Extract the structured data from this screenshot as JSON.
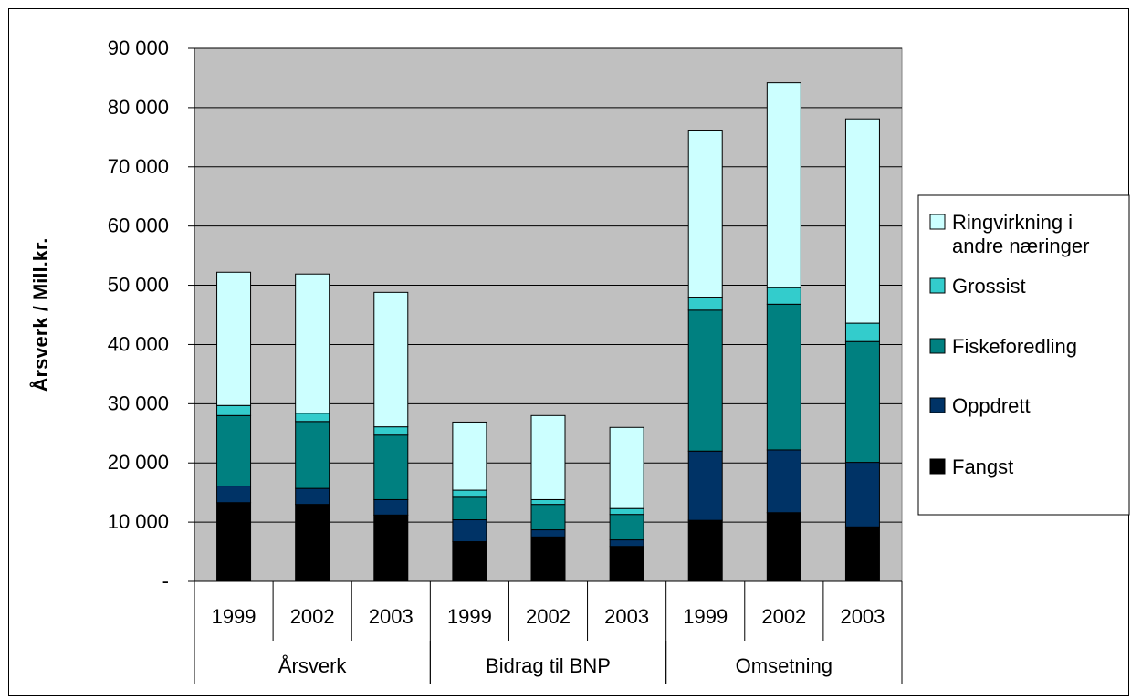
{
  "chart_data": {
    "type": "bar",
    "stacked": true,
    "ylabel": "Årsverk / Mill.kr.",
    "ylim": [
      0,
      90000
    ],
    "y_ticks": [
      {
        "value": 0,
        "label": "-"
      },
      {
        "value": 10000,
        "label": "10 000"
      },
      {
        "value": 20000,
        "label": "20 000"
      },
      {
        "value": 30000,
        "label": "30 000"
      },
      {
        "value": 40000,
        "label": "40 000"
      },
      {
        "value": 50000,
        "label": "50 000"
      },
      {
        "value": 60000,
        "label": "60 000"
      },
      {
        "value": 70000,
        "label": "70 000"
      },
      {
        "value": 80000,
        "label": "80 000"
      },
      {
        "value": 90000,
        "label": "90 000"
      }
    ],
    "grid": true,
    "plot_background": "#c0c0c0",
    "legend_position": "right",
    "groups": [
      {
        "label": "Årsverk",
        "years": [
          "1999",
          "2002",
          "2003"
        ]
      },
      {
        "label": "Bidrag til BNP",
        "years": [
          "1999",
          "2002",
          "2003"
        ]
      },
      {
        "label": "Omsetning",
        "years": [
          "1999",
          "2002",
          "2003"
        ]
      }
    ],
    "series": [
      {
        "name": "Fangst",
        "color": "#000000",
        "values": [
          13300,
          13000,
          11200,
          6700,
          7500,
          5900,
          10300,
          11600,
          9200
        ]
      },
      {
        "name": "Oppdrett",
        "color": "#003366",
        "values": [
          2800,
          2700,
          2600,
          3700,
          1200,
          1100,
          11700,
          10600,
          10900
        ]
      },
      {
        "name": "Fiskeforedling",
        "color": "#008080",
        "values": [
          11900,
          11300,
          10900,
          3800,
          4300,
          4300,
          23800,
          24600,
          20400
        ]
      },
      {
        "name": "Grossist",
        "color": "#33cccc",
        "values": [
          1700,
          1400,
          1400,
          1200,
          800,
          1000,
          2200,
          2800,
          3100
        ]
      },
      {
        "name": "Ringvirkning i andre næringer",
        "color": "#ccffff",
        "values": [
          22500,
          23500,
          22700,
          11500,
          14200,
          13700,
          28200,
          34600,
          34500
        ]
      }
    ]
  },
  "legend": {
    "items": [
      {
        "lines": [
          "Ringvirkning i",
          "andre næringer"
        ],
        "color": "#ccffff"
      },
      {
        "lines": [
          "Grossist"
        ],
        "color": "#33cccc"
      },
      {
        "lines": [
          "Fiskeforedling"
        ],
        "color": "#008080"
      },
      {
        "lines": [
          "Oppdrett"
        ],
        "color": "#003366"
      },
      {
        "lines": [
          "Fangst"
        ],
        "color": "#000000"
      }
    ]
  }
}
